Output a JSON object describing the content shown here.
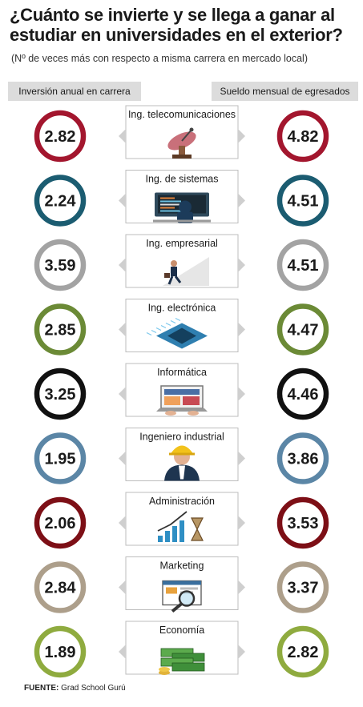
{
  "header": {
    "title": "¿Cuánto se invierte y  se llega a ganar al estudiar en  universidades en el exterior?",
    "subtitle": "(Nº de veces más con respecto a misma carrera en mercado local)",
    "left_column": "Inversión anual en carrera",
    "right_column": "Sueldo mensual de egresados"
  },
  "source": {
    "label": "FUENTE:",
    "text": " Grad School Gurú"
  },
  "chart_data": {
    "type": "table",
    "title": "¿Cuánto se invierte y  se llega a ganar al estudiar en  universidades en el exterior?",
    "categories": [
      "Ing. telecomunicaciones",
      "Ing. de sistemas",
      "Ing. empresarial",
      "Ing. electrónica",
      "Informática",
      "Ingeniero industrial",
      "Administración",
      "Marketing",
      "Economía"
    ],
    "series": [
      {
        "name": "Inversión anual en carrera",
        "values": [
          2.82,
          2.24,
          3.59,
          2.85,
          3.25,
          1.95,
          2.06,
          2.84,
          1.89
        ],
        "labels": [
          "2.82",
          "2.24",
          "3.59",
          "2.85",
          "3.25",
          "1.95",
          "2.06",
          "2.84",
          "1.89"
        ]
      },
      {
        "name": "Sueldo mensual de egresados",
        "values": [
          4.82,
          4.51,
          4.51,
          4.47,
          4.46,
          3.86,
          3.53,
          3.37,
          2.82
        ],
        "labels": [
          "4.82",
          "4.51",
          "4.51",
          "4.47",
          "4.46",
          "3.86",
          "3.53",
          "3.37",
          "2.82"
        ]
      }
    ],
    "ring_colors": [
      "#a3162e",
      "#1b5c71",
      "#a3a3a3",
      "#6b8a36",
      "#111111",
      "#5b86a6",
      "#7d0f16",
      "#ad9f8b",
      "#8fab3f"
    ],
    "icons": [
      "satellite-dish-icon",
      "computer-workstation-icon",
      "businessman-stairs-icon",
      "microchip-icon",
      "laptop-icon",
      "engineer-helmet-icon",
      "growth-chart-hourglass-icon",
      "magnifier-webpage-icon",
      "money-stack-icon"
    ]
  }
}
